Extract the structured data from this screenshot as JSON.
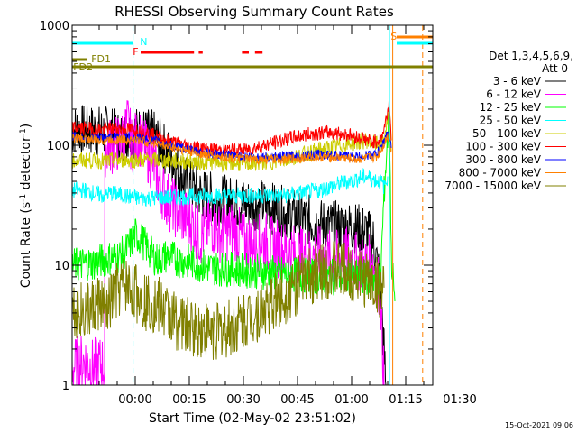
{
  "chart_data": {
    "type": "line",
    "title": "RHESSI Observing Summary Count Rates",
    "xlabel": "Start Time (02-May-02 23:51:02)",
    "ylabel_main": "Count Rate (s",
    "ylabel_sup1": "-1",
    "ylabel_mid": " detector",
    "ylabel_sup2": "-1",
    "ylabel_end": ")",
    "ylog": true,
    "ylim": [
      1,
      1000
    ],
    "xlim_min": [
      -8.5,
      91.5
    ],
    "yticks": [
      "1",
      "10",
      "100",
      "1000"
    ],
    "xticks": [
      {
        "m": 9,
        "label": "00:00"
      },
      {
        "m": 24,
        "label": "00:15"
      },
      {
        "m": 39,
        "label": "00:30"
      },
      {
        "m": 54,
        "label": "00:45"
      },
      {
        "m": 69,
        "label": "01:00"
      },
      {
        "m": 84,
        "label": "01:15"
      },
      {
        "m": 99,
        "label": "01:30"
      }
    ],
    "legend_title_1": "Det 1,3,4,5,6,9,",
    "legend_title_2": "Att 0",
    "series": [
      {
        "name": "3 - 6 keV",
        "color": "#000000",
        "pts": [
          [
            -8.5,
            135
          ],
          [
            2,
            130
          ],
          [
            5,
            115
          ],
          [
            7,
            125
          ],
          [
            10,
            130
          ],
          [
            14,
            120
          ],
          [
            17,
            95
          ],
          [
            20,
            70
          ],
          [
            23,
            50
          ],
          [
            27,
            40
          ],
          [
            32,
            35
          ],
          [
            38,
            33
          ],
          [
            44,
            32
          ],
          [
            50,
            28
          ],
          [
            55,
            25
          ],
          [
            60,
            22
          ],
          [
            64,
            21
          ],
          [
            69,
            21
          ],
          [
            73,
            19
          ],
          [
            75,
            16
          ],
          [
            77,
            7
          ],
          [
            78.5,
            1
          ]
        ]
      },
      {
        "name": "6 - 12 keV",
        "color": "#ff00ff",
        "pts": [
          [
            -8.5,
            1.4
          ],
          [
            -5,
            1.6
          ],
          [
            -3,
            1.4
          ],
          [
            0,
            1.5
          ],
          [
            0.5,
            1.3
          ],
          [
            0.6,
            95
          ],
          [
            3,
            100
          ],
          [
            5,
            105
          ],
          [
            7,
            150
          ],
          [
            8,
            100
          ],
          [
            10,
            120
          ],
          [
            12,
            90
          ],
          [
            14,
            70
          ],
          [
            16,
            45
          ],
          [
            18,
            35
          ],
          [
            20,
            30
          ],
          [
            22,
            26
          ],
          [
            25,
            22
          ],
          [
            27,
            17
          ],
          [
            30,
            22
          ],
          [
            33,
            18
          ],
          [
            36,
            20
          ],
          [
            39,
            16
          ],
          [
            42,
            15
          ],
          [
            45,
            16
          ],
          [
            48,
            14
          ],
          [
            52,
            13
          ],
          [
            56,
            12
          ],
          [
            60,
            12
          ],
          [
            64,
            11
          ],
          [
            68,
            12
          ],
          [
            72,
            10
          ],
          [
            75,
            10.5
          ],
          [
            77,
            6
          ],
          [
            78,
            1
          ]
        ]
      },
      {
        "name": "12 - 25 keV",
        "color": "#00ff00",
        "pts": [
          [
            -8.5,
            10
          ],
          [
            -2,
            10.5
          ],
          [
            2,
            11.5
          ],
          [
            5,
            12
          ],
          [
            7,
            14
          ],
          [
            9,
            18
          ],
          [
            11,
            16
          ],
          [
            13,
            13
          ],
          [
            15,
            11
          ],
          [
            18,
            12
          ],
          [
            21,
            11
          ],
          [
            25,
            10.5
          ],
          [
            30,
            9.5
          ],
          [
            40,
            9
          ],
          [
            50,
            8.5
          ],
          [
            60,
            8
          ],
          [
            70,
            8
          ],
          [
            75,
            7.8
          ],
          [
            77,
            7.5
          ],
          [
            78,
            40
          ],
          [
            79.5,
            200
          ],
          [
            80,
            12
          ],
          [
            81,
            5
          ]
        ]
      },
      {
        "name": "25 - 50 keV",
        "color": "#00ffff",
        "pts": [
          [
            -8.5,
            42
          ],
          [
            -5,
            42
          ],
          [
            0,
            38
          ],
          [
            2,
            40
          ],
          [
            6,
            38
          ],
          [
            10,
            36
          ],
          [
            20,
            37
          ],
          [
            30,
            38
          ],
          [
            40,
            38
          ],
          [
            50,
            38
          ],
          [
            60,
            42
          ],
          [
            65,
            47
          ],
          [
            70,
            52
          ],
          [
            73,
            55
          ],
          [
            75,
            52
          ],
          [
            77,
            50
          ],
          [
            78,
            45
          ],
          [
            79,
            55
          ]
        ]
      },
      {
        "name": "50 - 100 keV",
        "color": "#cccc00",
        "pts": [
          [
            -8.5,
            75
          ],
          [
            0,
            74
          ],
          [
            5,
            75
          ],
          [
            10,
            76
          ],
          [
            20,
            74
          ],
          [
            30,
            72
          ],
          [
            40,
            70
          ],
          [
            50,
            75
          ],
          [
            56,
            85
          ],
          [
            61,
            92
          ],
          [
            66,
            100
          ],
          [
            70,
            105
          ],
          [
            73,
            110
          ],
          [
            75,
            104
          ],
          [
            77,
            100
          ],
          [
            78,
            115
          ],
          [
            79.5,
            190
          ],
          [
            80,
            90
          ]
        ]
      },
      {
        "name": "100 - 300 keV",
        "color": "#ff0000",
        "pts": [
          [
            -8.5,
            140
          ],
          [
            0,
            135
          ],
          [
            4,
            137
          ],
          [
            8,
            135
          ],
          [
            12,
            128
          ],
          [
            16,
            115
          ],
          [
            20,
            105
          ],
          [
            24,
            98
          ],
          [
            30,
            92
          ],
          [
            36,
            90
          ],
          [
            40,
            92
          ],
          [
            46,
            102
          ],
          [
            52,
            115
          ],
          [
            58,
            125
          ],
          [
            63,
            128
          ],
          [
            68,
            123
          ],
          [
            72,
            113
          ],
          [
            75,
            107
          ],
          [
            77,
            112
          ],
          [
            78,
            135
          ],
          [
            79.5,
            230
          ],
          [
            80,
            110
          ]
        ]
      },
      {
        "name": "300 - 800 keV",
        "color": "#0000ff",
        "pts": [
          [
            -8.5,
            118
          ],
          [
            0,
            115
          ],
          [
            5,
            117
          ],
          [
            10,
            115
          ],
          [
            15,
            108
          ],
          [
            20,
            98
          ],
          [
            25,
            90
          ],
          [
            30,
            85
          ],
          [
            36,
            82
          ],
          [
            42,
            80
          ],
          [
            48,
            80
          ],
          [
            54,
            82
          ],
          [
            60,
            84
          ],
          [
            66,
            82
          ],
          [
            70,
            80
          ],
          [
            73,
            82
          ],
          [
            76,
            85
          ],
          [
            77.5,
            100
          ],
          [
            79,
            130
          ],
          [
            80,
            95
          ]
        ]
      },
      {
        "name": "800 - 7000 keV",
        "color": "#ff8000",
        "pts": [
          [
            -8.5,
            115
          ],
          [
            0,
            110
          ],
          [
            5,
            112
          ],
          [
            10,
            110
          ],
          [
            15,
            103
          ],
          [
            20,
            95
          ],
          [
            25,
            87
          ],
          [
            30,
            82
          ],
          [
            36,
            78
          ],
          [
            42,
            76
          ],
          [
            48,
            76
          ],
          [
            54,
            78
          ],
          [
            60,
            80
          ],
          [
            66,
            79
          ],
          [
            70,
            76
          ],
          [
            73,
            78
          ],
          [
            76,
            80
          ],
          [
            77.5,
            95
          ],
          [
            79,
            120
          ],
          [
            80,
            90
          ]
        ]
      },
      {
        "name": "7000 - 15000 keV",
        "color": "#808000",
        "pts": [
          [
            -8.5,
            4.5
          ],
          [
            -4,
            4
          ],
          [
            -1,
            5
          ],
          [
            1,
            4
          ],
          [
            3,
            5.5
          ],
          [
            6,
            7
          ],
          [
            9,
            6
          ],
          [
            12,
            5
          ],
          [
            16,
            4.5
          ],
          [
            20,
            3.5
          ],
          [
            24,
            3
          ],
          [
            28,
            2.9
          ],
          [
            32,
            2.8
          ],
          [
            36,
            3
          ],
          [
            40,
            3.6
          ],
          [
            44,
            4.2
          ],
          [
            48,
            5
          ],
          [
            52,
            6
          ],
          [
            56,
            7.5
          ],
          [
            60,
            9
          ],
          [
            64,
            9.5
          ],
          [
            68,
            8.5
          ],
          [
            72,
            8
          ],
          [
            75,
            7
          ],
          [
            77,
            6.5
          ],
          [
            78,
            6.5
          ]
        ]
      }
    ],
    "gaps": [
      {
        "m": 79.5,
        "color": "#00ffff",
        "dash": false
      },
      {
        "m": 8.4,
        "color": "#00ffff",
        "dash": true
      },
      {
        "m": 91.5,
        "color": "#00ffff",
        "dash": true
      },
      {
        "m": 80.4,
        "color": "#ff8000",
        "dash": false
      },
      {
        "m": 88.7,
        "color": "#ff8000",
        "dash": true
      }
    ],
    "flags": [
      {
        "label": "N",
        "color": "#00ffff",
        "y": 48,
        "from": -8.5,
        "to": 8.4,
        "label_at": 10.3,
        "label_y": 50
      },
      {
        "label": "F",
        "color": "#ff0000",
        "y": 58,
        "from": 10.5,
        "to": 25.3,
        "label_at": 8.3,
        "label_y": 61
      },
      {
        "label": "",
        "color": "#ff0000",
        "y": 58,
        "from": 26.6,
        "to": 27.7
      },
      {
        "label": "",
        "color": "#ff0000",
        "y": 58,
        "from": 38.6,
        "to": 40.5
      },
      {
        "label": "",
        "color": "#ff0000",
        "y": 58,
        "from": 42.2,
        "to": 44.3
      },
      {
        "label": "FD1",
        "color": "#808000",
        "y": 66,
        "from": -8.5,
        "to": -4.5,
        "label_at": -3.2,
        "label_y": 69
      },
      {
        "label": "FD2",
        "color": "#808000",
        "y": 74,
        "from": -8.5,
        "to": 91.5,
        "label_at": -8.2,
        "label_y": 78
      },
      {
        "label": "S",
        "color": "#ff8000",
        "y": 41,
        "from": 81.5,
        "to": 91.5,
        "label_at": 79.8,
        "label_y": 44
      },
      {
        "label": "",
        "color": "#00ffff",
        "y": 48,
        "from": 81.5,
        "to": 91.5
      }
    ],
    "timestamp": "15-Oct-2021 09:06"
  }
}
